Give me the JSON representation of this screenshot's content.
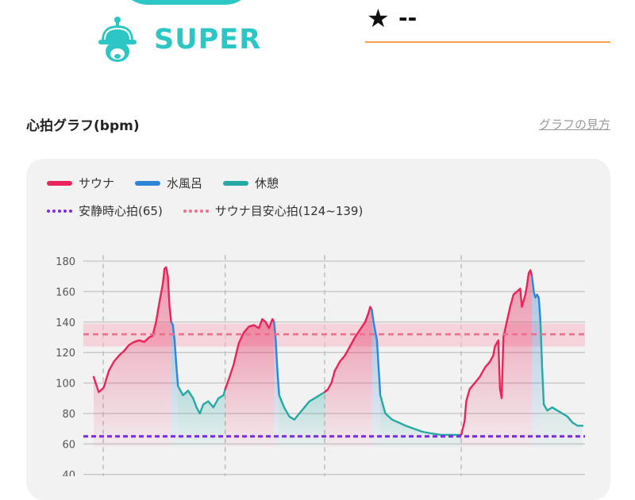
{
  "brand": {
    "name": "SUPER",
    "icon": "sauna-hat-mascot-icon",
    "color": "#2cc6c4"
  },
  "rating": {
    "star": "★",
    "value": "--"
  },
  "section": {
    "title": "心拍グラフ(bpm)",
    "help_link": "グラフの見方"
  },
  "legend": {
    "sauna": {
      "label": "サウナ",
      "color": "#e8245a"
    },
    "cold_bath": {
      "label": "水風呂",
      "color": "#2f86d9"
    },
    "rest": {
      "label": "休憩",
      "color": "#26a9a4"
    },
    "resting_hr": {
      "label": "安静時心拍(65)",
      "color": "#7d2ae8"
    },
    "sauna_target": {
      "label": "サウナ目安心拍(124~139)",
      "color": "#ee6e8e"
    }
  },
  "chart_data": {
    "type": "line",
    "y_ticks": [
      40,
      60,
      80,
      100,
      120,
      140,
      160,
      180
    ],
    "ylim": [
      40,
      180
    ],
    "resting_hr": 65,
    "target_band": [
      124,
      139
    ],
    "target_line": 132,
    "grid": true,
    "segments": [
      {
        "phase": "sauna",
        "points": [
          [
            0,
            104
          ],
          [
            3,
            94
          ],
          [
            6,
            97
          ],
          [
            9,
            108
          ],
          [
            12,
            114
          ],
          [
            15,
            118
          ],
          [
            18,
            121
          ],
          [
            21,
            125
          ],
          [
            24,
            127
          ],
          [
            27,
            128
          ],
          [
            30,
            127
          ],
          [
            33,
            130
          ],
          [
            35,
            131
          ],
          [
            37,
            140
          ],
          [
            39,
            153
          ],
          [
            41,
            165
          ],
          [
            42,
            175
          ],
          [
            43,
            176
          ],
          [
            44,
            170
          ],
          [
            45,
            150
          ],
          [
            46,
            140
          ]
        ]
      },
      {
        "phase": "cold_bath",
        "points": [
          [
            46,
            140
          ],
          [
            47,
            138
          ],
          [
            48,
            128
          ],
          [
            49,
            112
          ],
          [
            50,
            98
          ]
        ]
      },
      {
        "phase": "rest",
        "points": [
          [
            50,
            98
          ],
          [
            53,
            92
          ],
          [
            56,
            95
          ],
          [
            59,
            90
          ],
          [
            61,
            84
          ],
          [
            63,
            80
          ],
          [
            65,
            86
          ],
          [
            68,
            88
          ],
          [
            71,
            84
          ],
          [
            74,
            90
          ],
          [
            77,
            92
          ],
          [
            78,
            96
          ]
        ]
      },
      {
        "phase": "sauna",
        "points": [
          [
            78,
            96
          ],
          [
            80,
            102
          ],
          [
            83,
            112
          ],
          [
            86,
            126
          ],
          [
            89,
            133
          ],
          [
            92,
            137
          ],
          [
            95,
            138
          ],
          [
            98,
            136
          ],
          [
            100,
            142
          ],
          [
            102,
            140
          ],
          [
            104,
            136
          ],
          [
            106,
            142
          ],
          [
            107,
            140
          ]
        ]
      },
      {
        "phase": "cold_bath",
        "points": [
          [
            107,
            140
          ],
          [
            108,
            128
          ],
          [
            109,
            108
          ],
          [
            110,
            92
          ]
        ]
      },
      {
        "phase": "rest",
        "points": [
          [
            110,
            92
          ],
          [
            113,
            84
          ],
          [
            116,
            78
          ],
          [
            119,
            76
          ],
          [
            122,
            80
          ],
          [
            125,
            84
          ],
          [
            128,
            88
          ],
          [
            131,
            90
          ],
          [
            134,
            92
          ],
          [
            137,
            94
          ]
        ]
      },
      {
        "phase": "sauna",
        "points": [
          [
            137,
            94
          ],
          [
            139,
            96
          ],
          [
            141,
            100
          ],
          [
            143,
            108
          ],
          [
            146,
            114
          ],
          [
            149,
            118
          ],
          [
            152,
            124
          ],
          [
            155,
            130
          ],
          [
            158,
            135
          ],
          [
            161,
            140
          ],
          [
            163,
            146
          ],
          [
            164,
            150
          ],
          [
            165,
            148
          ]
        ]
      },
      {
        "phase": "cold_bath",
        "points": [
          [
            165,
            148
          ],
          [
            166,
            140
          ],
          [
            168,
            128
          ],
          [
            169,
            110
          ],
          [
            170,
            92
          ]
        ]
      },
      {
        "phase": "rest",
        "points": [
          [
            170,
            92
          ],
          [
            173,
            80
          ],
          [
            177,
            76
          ],
          [
            181,
            74
          ],
          [
            185,
            72
          ],
          [
            190,
            70
          ],
          [
            195,
            68
          ],
          [
            200,
            67
          ],
          [
            206,
            66
          ],
          [
            212,
            66
          ],
          [
            218,
            66
          ]
        ]
      },
      {
        "phase": "sauna",
        "points": [
          [
            218,
            66
          ],
          [
            220,
            75
          ],
          [
            221,
            88
          ],
          [
            223,
            96
          ],
          [
            226,
            100
          ],
          [
            229,
            104
          ],
          [
            232,
            110
          ],
          [
            235,
            114
          ],
          [
            237,
            118
          ],
          [
            238,
            124
          ],
          [
            240,
            128
          ],
          [
            241,
            96
          ],
          [
            242,
            90
          ],
          [
            243,
            130
          ],
          [
            245,
            140
          ],
          [
            247,
            150
          ],
          [
            249,
            158
          ],
          [
            251,
            160
          ],
          [
            253,
            162
          ],
          [
            254,
            150
          ],
          [
            256,
            158
          ],
          [
            257,
            164
          ],
          [
            258,
            172
          ],
          [
            259,
            174
          ],
          [
            260,
            170
          ]
        ]
      },
      {
        "phase": "cold_bath",
        "points": [
          [
            260,
            170
          ],
          [
            261,
            160
          ],
          [
            262,
            156
          ],
          [
            263,
            158
          ],
          [
            264,
            156
          ],
          [
            265,
            140
          ]
        ]
      },
      {
        "phase": "rest",
        "points": [
          [
            265,
            140
          ],
          [
            266,
            110
          ],
          [
            267,
            86
          ],
          [
            269,
            82
          ],
          [
            272,
            84
          ],
          [
            275,
            82
          ],
          [
            278,
            80
          ],
          [
            281,
            78
          ],
          [
            284,
            74
          ],
          [
            287,
            72
          ],
          [
            290,
            72
          ]
        ]
      }
    ]
  }
}
